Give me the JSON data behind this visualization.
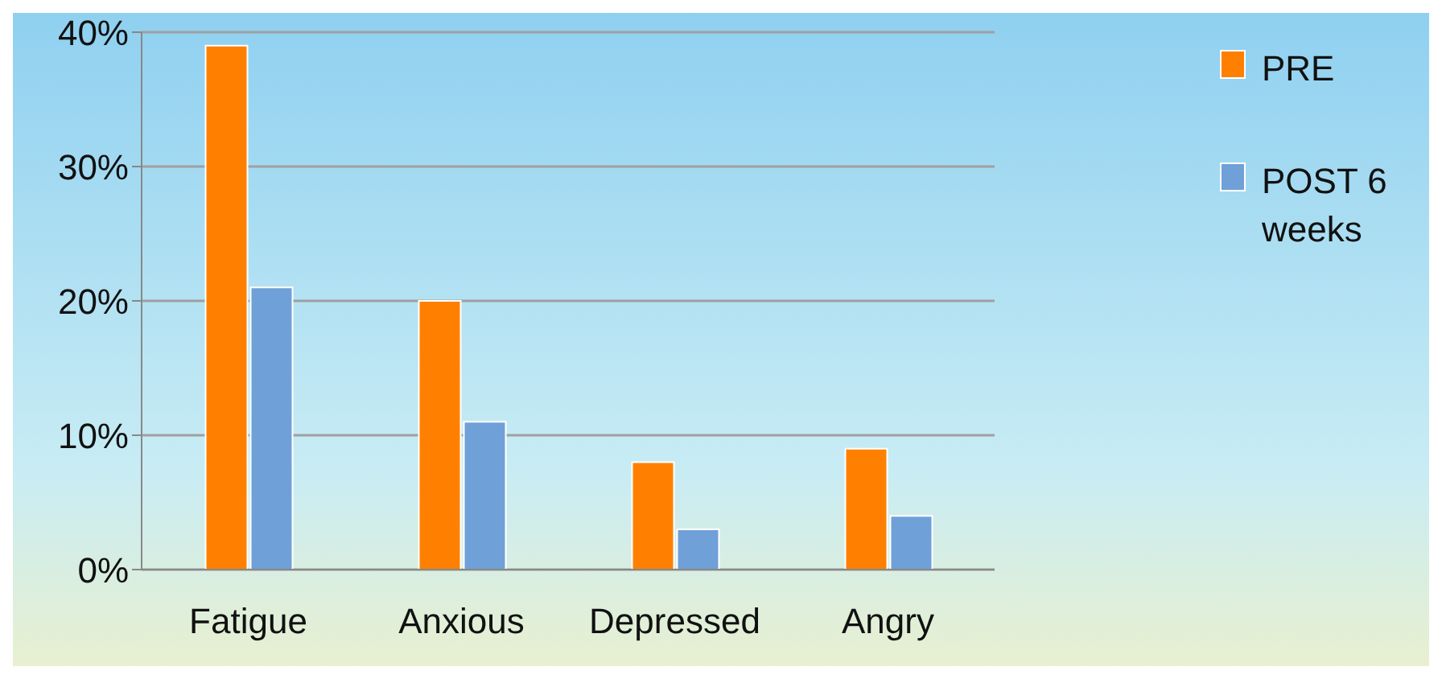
{
  "chart_data": {
    "type": "bar",
    "categories": [
      "Fatigue",
      "Anxious",
      "Depressed",
      "Angry"
    ],
    "series": [
      {
        "name": "PRE",
        "color": "#ff8000",
        "values": [
          39,
          20,
          8,
          9
        ]
      },
      {
        "name": "POST 6 weeks",
        "color": "#6fa0d8",
        "values": [
          21,
          11,
          3,
          4
        ]
      }
    ],
    "ylim": [
      0,
      40
    ],
    "yticks": [
      {
        "value": 0,
        "label": "0%"
      },
      {
        "value": 10,
        "label": "10%"
      },
      {
        "value": 20,
        "label": "20%"
      },
      {
        "value": 30,
        "label": "30%"
      },
      {
        "value": 40,
        "label": "40%"
      }
    ],
    "grid": "y",
    "legend": "top right"
  }
}
